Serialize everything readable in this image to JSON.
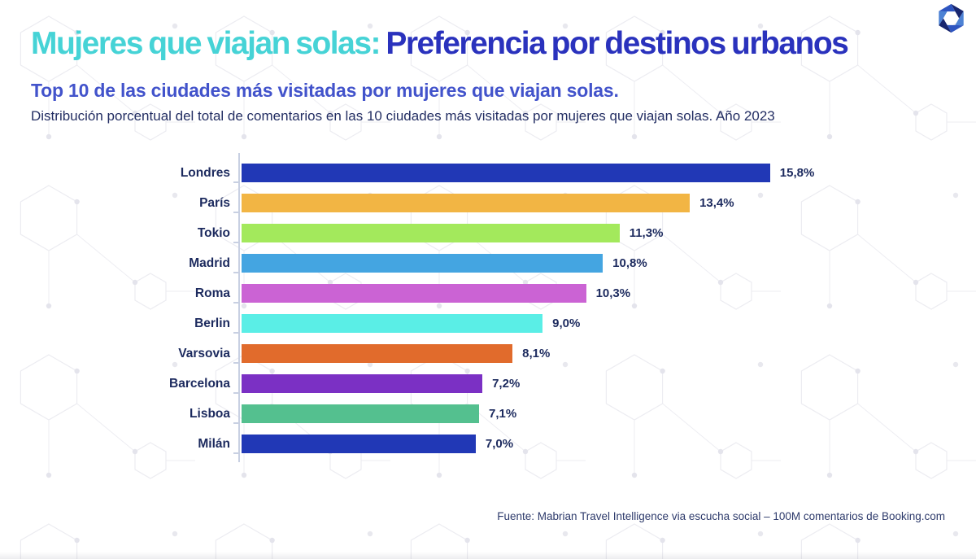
{
  "header": {
    "title_highlight": "Mujeres que viajan solas:",
    "title_rest": "Preferencia por destinos urbanos",
    "subtitle": "Top 10 de las ciudades más visitadas por mujeres que viajan solas.",
    "description": "Distribución porcentual del total de comentarios en las 10 ciudades más visitadas por mujeres que viajan solas. Año 2023"
  },
  "footer": {
    "source": "Fuente: Mabrian Travel Intelligence via escucha social – 100M comentarios de Booking.com"
  },
  "logo": {
    "name": "mabrian-hexagon-logo",
    "segment_colors": [
      "#18266f",
      "#4d82d4",
      "#2e55c0",
      "#18266f",
      "#4d82d4",
      "#2e55c0"
    ]
  },
  "theme": {
    "title_highlight_color": "#46d3d6",
    "title_main_color": "#2a32bd",
    "subtitle_color": "#4253cb",
    "text_color": "#1c2a5e",
    "axis_color": "#c8d0e2",
    "background": "#ffffff"
  },
  "chart_data": {
    "type": "bar",
    "orientation": "horizontal",
    "title": "Top 10 de las ciudades más visitadas por mujeres que viajan solas.",
    "xlabel": "",
    "ylabel": "",
    "xlim": [
      0,
      16
    ],
    "grid": false,
    "unit": "%",
    "legend": "none",
    "categories": [
      "Londres",
      "París",
      "Tokio",
      "Madrid",
      "Roma",
      "Berlin",
      "Varsovia",
      "Barcelona",
      "Lisboa",
      "Milán"
    ],
    "values": [
      15.8,
      13.4,
      11.3,
      10.8,
      10.3,
      9.0,
      8.1,
      7.2,
      7.1,
      7.0
    ],
    "value_labels": [
      "15,8%",
      "13,4%",
      "11,3%",
      "10,8%",
      "10,3%",
      "9,0%",
      "8,1%",
      "7,2%",
      "7,1%",
      "7,0%"
    ],
    "bar_colors": [
      "#2138b6",
      "#f2b544",
      "#a3e95c",
      "#44a5e1",
      "#cb63d4",
      "#5aeee6",
      "#e16b2c",
      "#7b30c4",
      "#54c08f",
      "#2138b6"
    ]
  }
}
